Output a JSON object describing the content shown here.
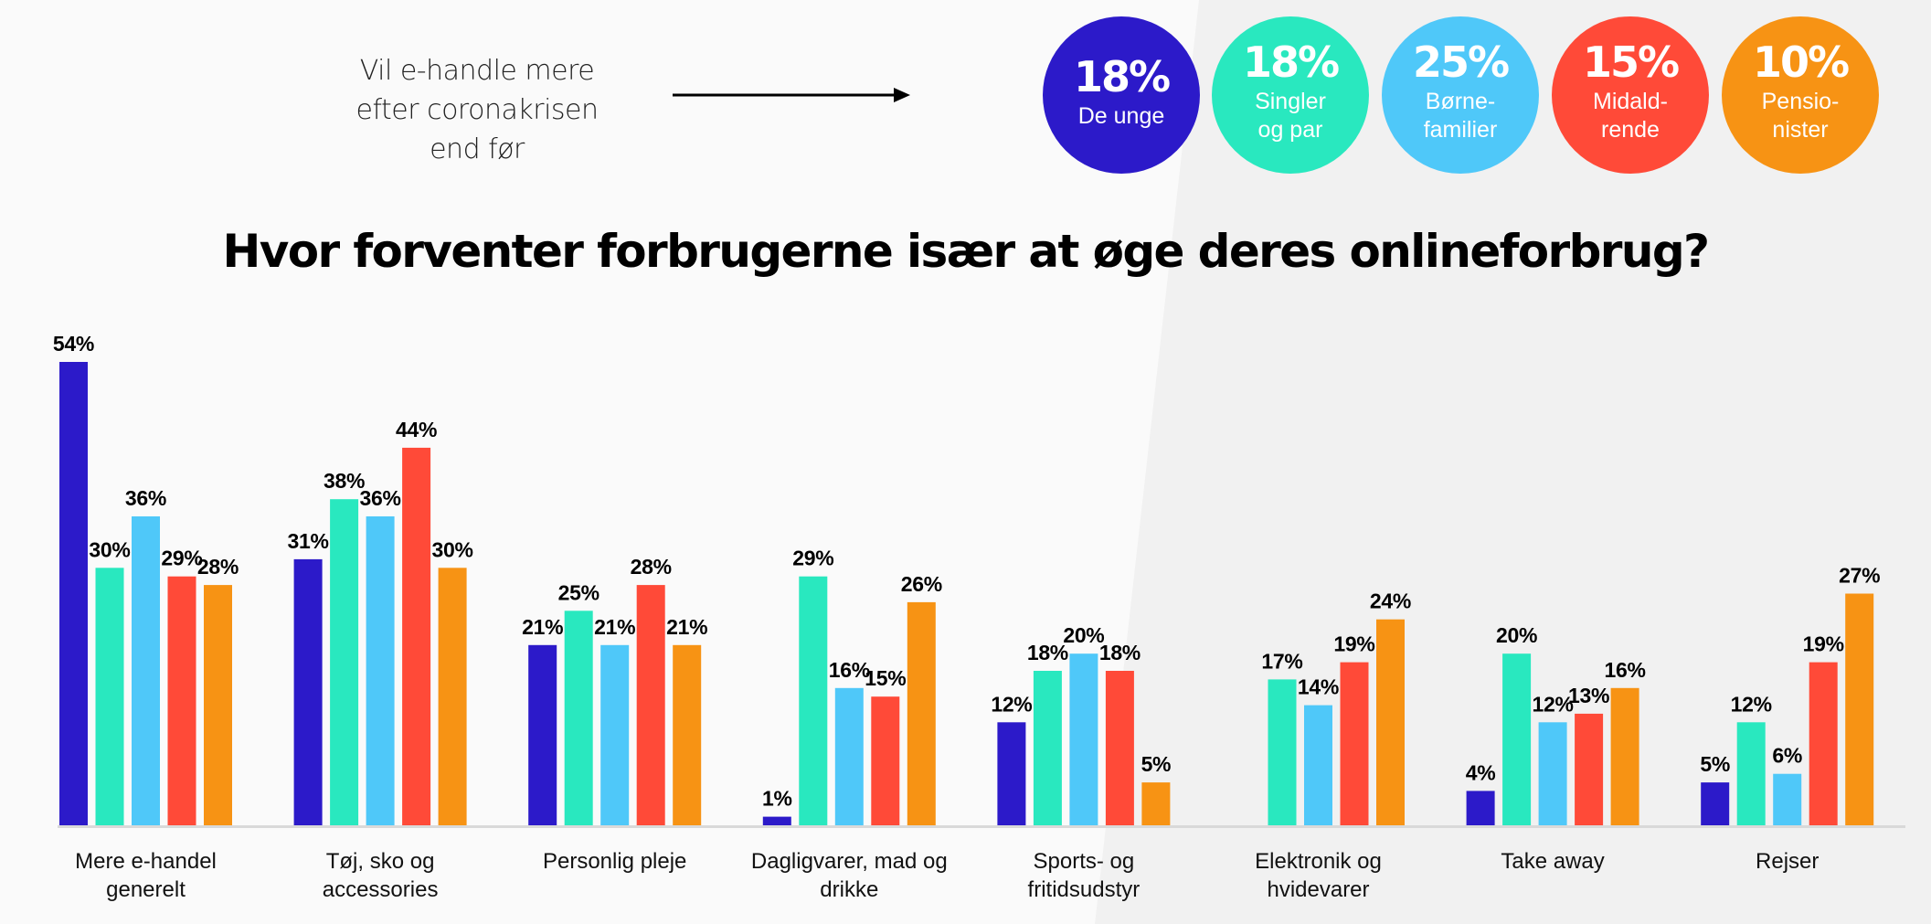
{
  "intro": {
    "lines": [
      "Vil e-handle mere",
      "efter coronakrisen",
      "end før"
    ]
  },
  "segments": [
    {
      "percent": "18%",
      "label_lines": [
        "De unge"
      ],
      "color": "#2c1ac9"
    },
    {
      "percent": "18%",
      "label_lines": [
        "Singler",
        "og par"
      ],
      "color": "#29e8bf"
    },
    {
      "percent": "25%",
      "label_lines": [
        "Børne-",
        "familier"
      ],
      "color": "#4fc8f9"
    },
    {
      "percent": "15%",
      "label_lines": [
        "Midald-",
        "rende"
      ],
      "color": "#ff4a38"
    },
    {
      "percent": "10%",
      "label_lines": [
        "Pensio-",
        "nister"
      ],
      "color": "#f79314"
    }
  ],
  "chart_data": {
    "type": "bar",
    "title": "Hvor forventer forbrugerne især at øge deres onlineforbrug?",
    "xlabel": "",
    "ylabel": "",
    "ylim": [
      0,
      54
    ],
    "grid": false,
    "value_suffix": "%",
    "categories": [
      [
        "Mere e-handel",
        "generelt"
      ],
      [
        "Tøj, sko og",
        "accessories"
      ],
      [
        "Personlig pleje"
      ],
      [
        "Dagligvarer, mad og",
        "drikke"
      ],
      [
        "Sports- og",
        "fritidsudstyr"
      ],
      [
        "Elektronik og",
        "hvidevarer"
      ],
      [
        "Take away"
      ],
      [
        "Rejser"
      ]
    ],
    "series": [
      {
        "name": "De unge",
        "color": "#2c1ac9",
        "values": [
          54,
          31,
          21,
          1,
          12,
          null,
          4,
          5
        ]
      },
      {
        "name": "Singler og par",
        "color": "#29e8bf",
        "values": [
          30,
          38,
          25,
          29,
          18,
          17,
          20,
          12
        ]
      },
      {
        "name": "Børnefamilier",
        "color": "#4fc8f9",
        "values": [
          36,
          36,
          21,
          16,
          20,
          14,
          12,
          6
        ]
      },
      {
        "name": "Midaldrende",
        "color": "#ff4a38",
        "values": [
          29,
          44,
          28,
          15,
          18,
          19,
          13,
          19
        ]
      },
      {
        "name": "Pensionister",
        "color": "#f79314",
        "values": [
          28,
          30,
          21,
          26,
          5,
          24,
          16,
          27
        ]
      }
    ]
  }
}
